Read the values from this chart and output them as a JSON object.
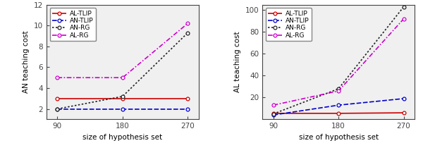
{
  "x": [
    90,
    180,
    270
  ],
  "left": {
    "ylabel": "AN teaching cost",
    "xlabel": "size of hypothesis set",
    "ylim": [
      1,
      12
    ],
    "yticks": [
      2,
      4,
      6,
      8,
      10,
      12
    ],
    "series": {
      "AL-TLIP": {
        "values": [
          3.0,
          3.0,
          3.0
        ],
        "color": "#cc0000",
        "linestyle": "-",
        "marker": "o"
      },
      "AN-TLIP": {
        "values": [
          2.0,
          2.0,
          2.0
        ],
        "color": "#0000cc",
        "linestyle": "--",
        "marker": "o"
      },
      "AN-RG": {
        "values": [
          2.0,
          3.2,
          9.3
        ],
        "color": "#222222",
        "linestyle": ":",
        "marker": "o"
      },
      "AL-RG": {
        "values": [
          5.0,
          5.0,
          10.2
        ],
        "color": "#cc00cc",
        "linestyle": "-.",
        "marker": "o"
      }
    }
  },
  "right": {
    "ylabel": "AL teaching cost",
    "xlabel": "size of hypothesis set",
    "ylim": [
      0,
      105
    ],
    "yticks": [
      20,
      40,
      60,
      80,
      100
    ],
    "series": {
      "AL-TLIP": {
        "values": [
          5.5,
          5.5,
          6.0
        ],
        "color": "#cc0000",
        "linestyle": "-",
        "marker": "o"
      },
      "AN-TLIP": {
        "values": [
          4.0,
          13.0,
          19.0
        ],
        "color": "#0000cc",
        "linestyle": "--",
        "marker": "o"
      },
      "AN-RG": {
        "values": [
          5.0,
          28.0,
          103.0
        ],
        "color": "#222222",
        "linestyle": ":",
        "marker": "o"
      },
      "AL-RG": {
        "values": [
          13.0,
          26.0,
          92.0
        ],
        "color": "#cc00cc",
        "linestyle": "-.",
        "marker": "o"
      }
    }
  },
  "legend_order": [
    "AL-TLIP",
    "AN-TLIP",
    "AN-RG",
    "AL-RG"
  ],
  "fontsize": 7.5,
  "marker_size": 3.5,
  "bg_color": "#f0f0f0"
}
